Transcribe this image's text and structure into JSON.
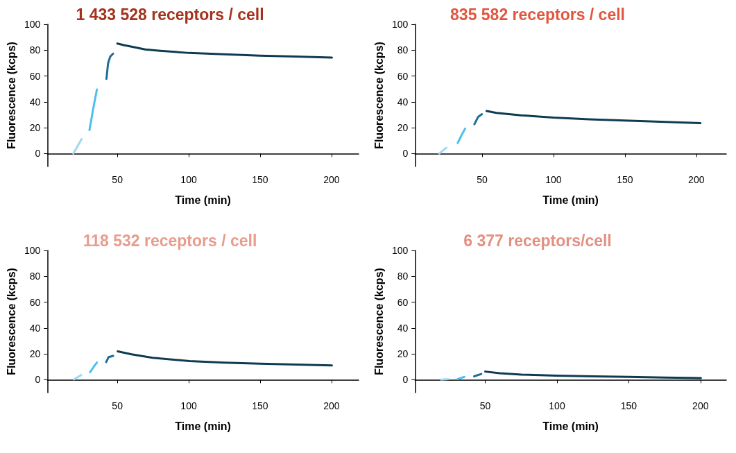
{
  "chart_data": [
    {
      "type": "line",
      "title": "1 433 528 receptors / cell",
      "xlabel": "Time (min)",
      "ylabel": "Fluorescence (kcps)",
      "xlim": [
        1,
        219
      ],
      "xticks": [
        50,
        100,
        150,
        200
      ],
      "ylim": [
        -10,
        100
      ],
      "yticks": [
        0,
        20,
        40,
        60,
        80,
        100
      ],
      "grid": false,
      "marker": "none",
      "line_style": "solid",
      "series": [
        {
          "color": "#9fd9f3",
          "x": [
            19.2,
            24.9
          ],
          "values": [
            0,
            11.1
          ]
        },
        {
          "color": "#4cbfef",
          "x": [
            30.5,
            33,
            35.7
          ],
          "values": [
            18.2,
            34,
            49.6
          ]
        },
        {
          "color": "#1c6e98",
          "x": [
            42.4,
            43.5,
            45,
            47.1
          ],
          "values": [
            57.8,
            69.7,
            75,
            77.3
          ]
        },
        {
          "color": "#0e3b52",
          "x": [
            50,
            55,
            60,
            69.5,
            80,
            100.3,
            125,
            149.9,
            175,
            200.3
          ],
          "values": [
            85.1,
            83.8,
            82.7,
            80.6,
            79.5,
            77.8,
            76.8,
            75.7,
            75,
            74.2
          ]
        }
      ]
    },
    {
      "type": "line",
      "title": "835 582 receptors / cell",
      "xlabel": "Time (min)",
      "ylabel": "Fluorescence (kcps)",
      "xlim": [
        3,
        221
      ],
      "xticks": [
        50,
        100,
        150,
        200
      ],
      "ylim": [
        -10,
        100
      ],
      "yticks": [
        0,
        20,
        40,
        60,
        80,
        100
      ],
      "grid": false,
      "marker": "none",
      "line_style": "solid",
      "series": [
        {
          "color": "#9fd9f3",
          "x": [
            20,
            24.9
          ],
          "values": [
            0,
            4.5
          ]
        },
        {
          "color": "#4cbfef",
          "x": [
            32.9,
            35.5,
            38.1
          ],
          "values": [
            8.2,
            14,
            19.3
          ]
        },
        {
          "color": "#1c6e98",
          "x": [
            44.6,
            47.1,
            49.9
          ],
          "values": [
            22.7,
            28.2,
            30.5
          ]
        },
        {
          "color": "#0e3b52",
          "x": [
            53.1,
            60,
            77.3,
            100.1,
            125,
            150,
            175,
            202.9
          ],
          "values": [
            32.9,
            31.5,
            29.6,
            27.8,
            26.5,
            25.5,
            24.6,
            23.6
          ]
        }
      ]
    },
    {
      "type": "line",
      "title": "118 532 receptors / cell",
      "xlabel": "Time (min)",
      "ylabel": "Fluorescence (kcps)",
      "xlim": [
        1,
        219
      ],
      "xticks": [
        50,
        100,
        150,
        200
      ],
      "ylim": [
        -10,
        100
      ],
      "yticks": [
        0,
        20,
        40,
        60,
        80,
        100
      ],
      "grid": false,
      "marker": "none",
      "line_style": "solid",
      "series": [
        {
          "color": "#9fd9f3",
          "x": [
            19.6,
            24.7
          ],
          "values": [
            0.2,
            3.6
          ]
        },
        {
          "color": "#4cbfef",
          "x": [
            30.9,
            33.5,
            35.7
          ],
          "values": [
            5.8,
            10,
            13.3
          ]
        },
        {
          "color": "#1c6e98",
          "x": [
            42.2,
            43.9,
            47.1
          ],
          "values": [
            13.7,
            17.5,
            18.4
          ]
        },
        {
          "color": "#0e3b52",
          "x": [
            50.3,
            60,
            74.7,
            100.6,
            125,
            150,
            175,
            200.3
          ],
          "values": [
            21.9,
            19.6,
            17,
            14.4,
            13.2,
            12.4,
            11.7,
            11.1
          ]
        }
      ]
    },
    {
      "type": "line",
      "title": "6 377 receptors/cell",
      "xlabel": "Time (min)",
      "ylabel": "Fluorescence (kcps)",
      "xlim": [
        1,
        218
      ],
      "xticks": [
        50,
        100,
        150,
        200
      ],
      "ylim": [
        -10,
        100
      ],
      "yticks": [
        0,
        20,
        40,
        60,
        80,
        100
      ],
      "grid": false,
      "marker": "none",
      "line_style": "solid",
      "series": [
        {
          "color": "#9fd9f3",
          "x": [
            19.2,
            24
          ],
          "values": [
            0,
            0.4
          ]
        },
        {
          "color": "#4cbfef",
          "x": [
            30.5,
            35.4
          ],
          "values": [
            0.4,
            2.2
          ]
        },
        {
          "color": "#1c6e98",
          "x": [
            42.2,
            47.2
          ],
          "values": [
            2.6,
            4.4
          ]
        },
        {
          "color": "#0e3b52",
          "x": [
            50,
            60,
            75.2,
            99.6,
            125,
            150,
            175,
            200.3
          ],
          "values": [
            6.3,
            5,
            4,
            3.1,
            2.6,
            2.2,
            1.7,
            1.3
          ]
        }
      ]
    }
  ]
}
